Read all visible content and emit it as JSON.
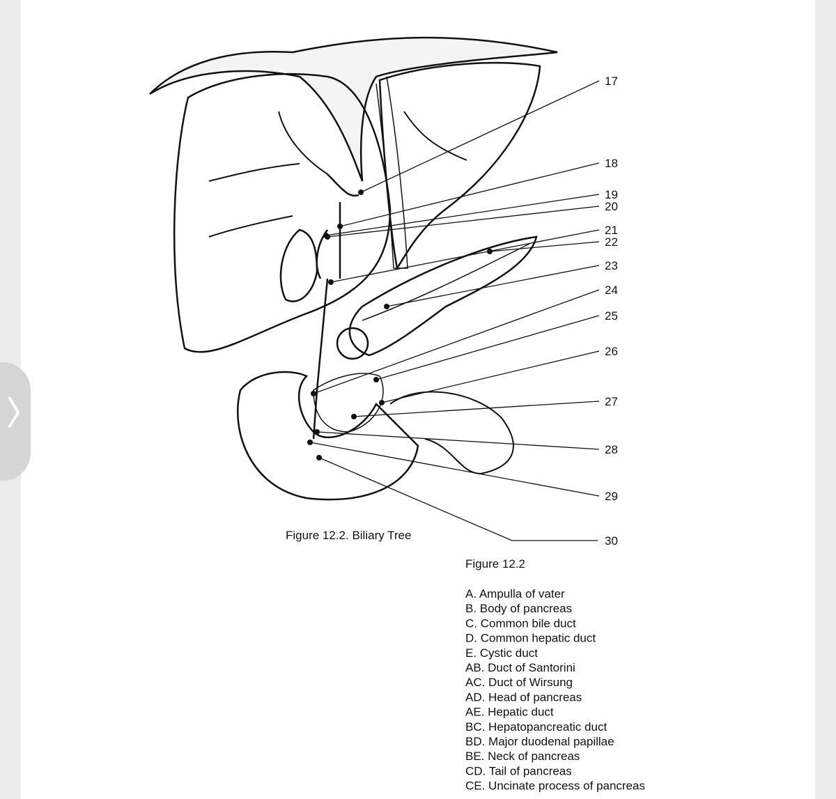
{
  "diagram": {
    "labels": [
      "17",
      "18",
      "19",
      "20",
      "21",
      "22",
      "23",
      "24",
      "25",
      "26",
      "27",
      "28",
      "29",
      "30"
    ],
    "caption": "Figure 12.2. Biliary Tree"
  },
  "key": {
    "title": "Figure 12.2",
    "items": [
      "A. Ampulla of vater",
      "B. Body of pancreas",
      "C. Common bile duct",
      "D. Common hepatic duct",
      "E. Cystic duct",
      "AB. Duct of Santorini",
      "AC. Duct of Wirsung",
      "AD. Head of pancreas",
      "AE. Hepatic duct",
      "BC. Hepatopancreatic duct",
      "BD. Major duodenal papillae",
      "BE. Neck of pancreas",
      "CD. Tail of pancreas",
      "CE. Uncinate process of pancreas"
    ]
  }
}
